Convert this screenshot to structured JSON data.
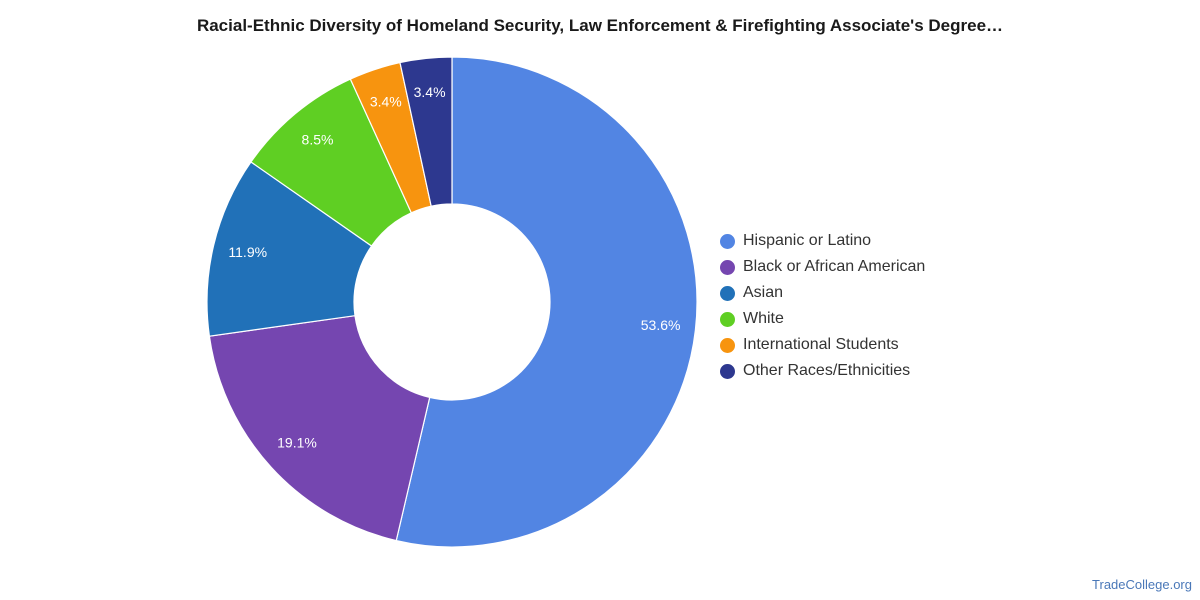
{
  "chart_data": {
    "type": "pie",
    "title": "Racial-Ethnic Diversity of Homeland Security, Law Enforcement & Firefighting Associate's Degree…",
    "donut": true,
    "legend_placement": "right",
    "slices": [
      {
        "label": "Hispanic or Latino",
        "value": 53.6,
        "value_label": "53.6%",
        "color": "#5285e3"
      },
      {
        "label": "Black or African American",
        "value": 19.1,
        "value_label": "19.1%",
        "color": "#7546b0"
      },
      {
        "label": "Asian",
        "value": 11.9,
        "value_label": "11.9%",
        "color": "#2171b8"
      },
      {
        "label": "White",
        "value": 8.5,
        "value_label": "8.5%",
        "color": "#5fcf23"
      },
      {
        "label": "International Students",
        "value": 3.4,
        "value_label": "3.4%",
        "color": "#f7940f"
      },
      {
        "label": "Other Races/Ethnicities",
        "value": 3.4,
        "value_label": "3.4%",
        "color": "#2d388f"
      }
    ]
  },
  "source": "TradeCollege.org"
}
